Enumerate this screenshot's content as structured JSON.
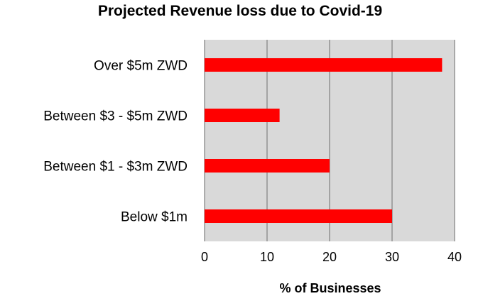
{
  "chart_data": {
    "type": "bar",
    "orientation": "horizontal",
    "title": "Projected Revenue loss due to Covid-19",
    "xlabel": "% of Businesses",
    "ylabel": "",
    "categories": [
      "Over $5m ZWD",
      "Between $3 - $5m ZWD",
      "Between $1 - $3m ZWD",
      "Below $1m"
    ],
    "values": [
      38,
      12,
      20,
      30
    ],
    "xlim": [
      0,
      40
    ],
    "xticks": [
      "0",
      "10",
      "20",
      "30",
      "40"
    ],
    "grid": "vertical",
    "legend": "none",
    "colors": {
      "bar": "#ff0000",
      "plot_background": "#d9d9d9",
      "gridline": "#808080"
    }
  }
}
